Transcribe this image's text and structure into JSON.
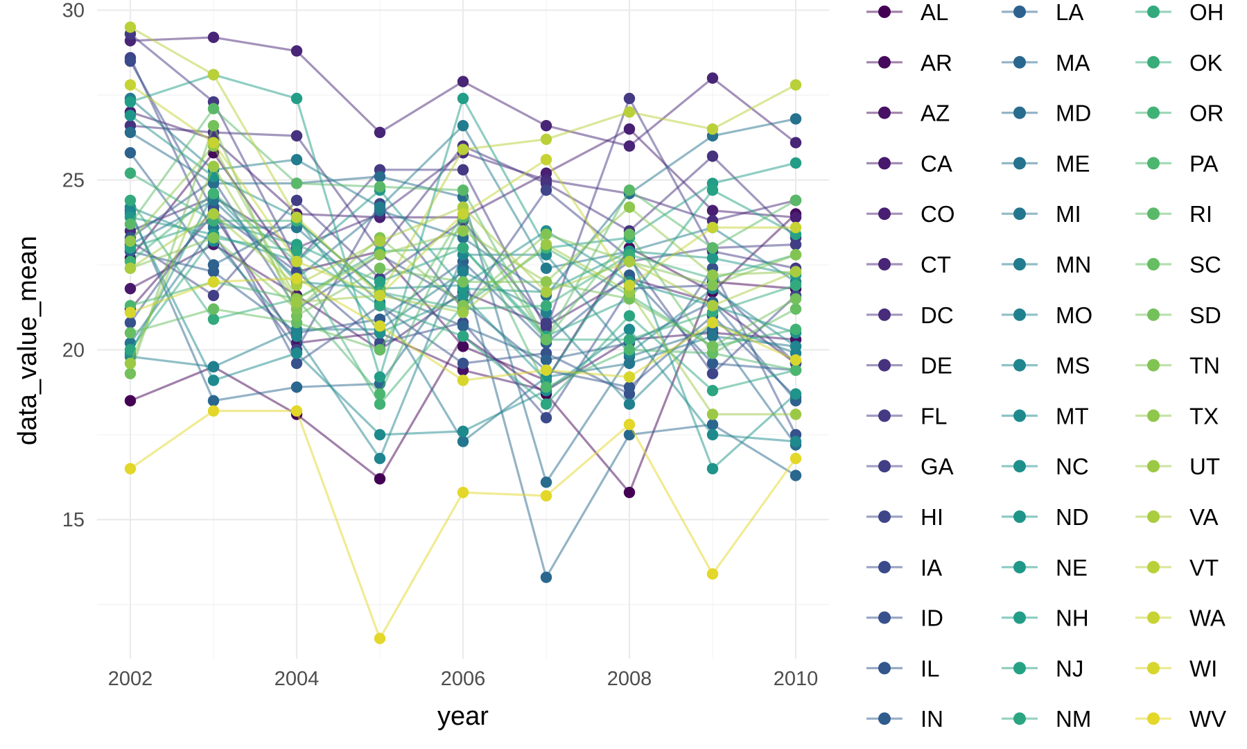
{
  "chart_data": {
    "type": "line",
    "xlabel": "year",
    "ylabel": "data_value_mean",
    "x": [
      2002,
      2003,
      2004,
      2005,
      2006,
      2007,
      2008,
      2009,
      2010
    ],
    "xlim": [
      2001.6,
      2010.4
    ],
    "ylim": [
      10.9,
      30.3
    ],
    "x_ticks": [
      2002,
      2004,
      2006,
      2008,
      2010
    ],
    "y_ticks": [
      15,
      20,
      25,
      30
    ],
    "grid": true,
    "legend_position": "right",
    "legend_columns": 3,
    "palette": "viridis",
    "series": [
      {
        "name": "AL",
        "color": "#440154",
        "values": [
          18.5,
          19.5,
          18.1,
          16.2,
          20.4,
          18.7,
          15.8,
          22.0,
          21.8
        ]
      },
      {
        "name": "AR",
        "color": "#450a5c",
        "values": [
          22.7,
          25.8,
          22.3,
          22.9,
          20.1,
          19.1,
          23.0,
          21.7,
          24.0
        ]
      },
      {
        "name": "AZ",
        "color": "#471164",
        "values": [
          21.2,
          24.0,
          20.2,
          20.5,
          19.4,
          18.8,
          20.3,
          20.5,
          20.3
        ]
      },
      {
        "name": "CA",
        "color": "#47186b",
        "values": [
          21.8,
          23.1,
          21.6,
          20.0,
          21.7,
          20.7,
          22.1,
          21.4,
          19.6
        ]
      },
      {
        "name": "CO",
        "color": "#481f72",
        "values": [
          27.0,
          26.2,
          24.0,
          23.9,
          23.9,
          25.2,
          26.5,
          24.1,
          23.9
        ]
      },
      {
        "name": "CT",
        "color": "#482576",
        "values": [
          29.1,
          29.2,
          28.8,
          26.4,
          27.9,
          26.6,
          26.0,
          28.0,
          26.1
        ]
      },
      {
        "name": "DC",
        "color": "#472c7b",
        "values": [
          23.5,
          24.5,
          23.0,
          24.0,
          25.8,
          25.0,
          24.6,
          23.8,
          24.4
        ]
      },
      {
        "name": "DE",
        "color": "#46327e",
        "values": [
          26.6,
          26.4,
          26.3,
          22.9,
          26.0,
          24.9,
          23.5,
          25.7,
          23.3
        ]
      },
      {
        "name": "FL",
        "color": "#443983",
        "values": [
          29.3,
          27.3,
          22.6,
          25.3,
          25.3,
          20.6,
          27.4,
          22.9,
          22.4
        ]
      },
      {
        "name": "GA",
        "color": "#413e85",
        "values": [
          23.2,
          21.6,
          24.4,
          22.1,
          23.8,
          20.8,
          22.6,
          23.0,
          23.1
        ]
      },
      {
        "name": "HI",
        "color": "#3e4588",
        "values": [
          28.6,
          23.4,
          20.0,
          24.3,
          21.2,
          24.7,
          22.7,
          19.3,
          21.6
        ]
      },
      {
        "name": "IA",
        "color": "#3a4a8b",
        "values": [
          28.5,
          24.1,
          22.3,
          20.2,
          20.8,
          18.0,
          21.8,
          21.9,
          19.6
        ]
      },
      {
        "name": "ID",
        "color": "#37518c",
        "values": [
          20.8,
          24.2,
          19.6,
          21.3,
          19.6,
          19.9,
          18.7,
          22.4,
          17.5
        ]
      },
      {
        "name": "IL",
        "color": "#33568c",
        "values": [
          23.3,
          25.0,
          21.2,
          22.8,
          21.4,
          19.4,
          18.9,
          21.0,
          18.6
        ]
      },
      {
        "name": "IN",
        "color": "#305c8d",
        "values": [
          22.9,
          22.3,
          20.5,
          20.9,
          22.6,
          20.2,
          22.2,
          19.6,
          19.4
        ]
      },
      {
        "name": "LA",
        "color": "#2d628e",
        "values": [
          25.8,
          22.5,
          23.8,
          21.7,
          20.7,
          19.7,
          20.2,
          21.4,
          18.5
        ]
      },
      {
        "name": "MA",
        "color": "#2a678e",
        "values": [
          24.1,
          18.5,
          18.9,
          19.0,
          22.4,
          13.3,
          17.5,
          17.8,
          16.3
        ]
      },
      {
        "name": "MD",
        "color": "#286c8e",
        "values": [
          26.4,
          24.9,
          24.9,
          25.1,
          24.5,
          16.1,
          19.8,
          20.6,
          17.2
        ]
      },
      {
        "name": "ME",
        "color": "#26718e",
        "values": [
          23.1,
          24.4,
          22.1,
          24.1,
          23.3,
          21.6,
          24.6,
          26.3,
          26.8
        ]
      },
      {
        "name": "MI",
        "color": "#24768e",
        "values": [
          20.2,
          23.6,
          23.6,
          21.4,
          17.3,
          19.2,
          19.6,
          20.4,
          20.1
        ]
      },
      {
        "name": "MN",
        "color": "#237b8e",
        "values": [
          27.4,
          25.3,
          25.6,
          24.2,
          26.6,
          22.4,
          22.9,
          23.6,
          22.0
        ]
      },
      {
        "name": "MO",
        "color": "#21808e",
        "values": [
          19.8,
          19.5,
          20.6,
          20.6,
          22.3,
          21.1,
          18.4,
          20.8,
          19.9
        ]
      },
      {
        "name": "MS",
        "color": "#1f858e",
        "values": [
          24.2,
          23.2,
          20.4,
          16.8,
          22.8,
          22.8,
          19.9,
          21.8,
          20.1
        ]
      },
      {
        "name": "MT",
        "color": "#1e8a8d",
        "values": [
          24.0,
          19.1,
          19.9,
          17.5,
          17.6,
          18.8,
          20.6,
          17.5,
          17.3
        ]
      },
      {
        "name": "NC",
        "color": "#1f8f8c",
        "values": [
          19.9,
          24.6,
          22.0,
          21.8,
          21.9,
          23.5,
          22.0,
          21.3,
          20.5
        ]
      },
      {
        "name": "ND",
        "color": "#1f948a",
        "values": [
          26.9,
          25.1,
          23.9,
          20.5,
          21.6,
          19.1,
          22.9,
          16.5,
          18.7
        ]
      },
      {
        "name": "NE",
        "color": "#209889",
        "values": [
          23.9,
          23.4,
          22.6,
          24.7,
          21.8,
          21.7,
          22.9,
          22.7,
          22.2
        ]
      },
      {
        "name": "NH",
        "color": "#229d87",
        "values": [
          27.3,
          28.1,
          27.4,
          19.2,
          27.4,
          23.0,
          23.3,
          24.9,
          25.5
        ]
      },
      {
        "name": "NJ",
        "color": "#25a284",
        "values": [
          23.0,
          23.8,
          23.1,
          22.0,
          23.0,
          20.4,
          21.5,
          24.7,
          23.4
        ]
      },
      {
        "name": "NM",
        "color": "#2ca581",
        "values": [
          20.0,
          23.3,
          22.9,
          21.3,
          20.4,
          18.4,
          21.0,
          18.8,
          19.4
        ]
      },
      {
        "name": "OH",
        "color": "#33aa7d",
        "values": [
          24.4,
          20.9,
          21.5,
          22.9,
          23.0,
          20.3,
          20.3,
          21.1,
          21.9
        ]
      },
      {
        "name": "OK",
        "color": "#39ad79",
        "values": [
          25.2,
          23.8,
          23.8,
          21.7,
          21.2,
          21.3,
          22.8,
          22.1,
          22.8
        ]
      },
      {
        "name": "OR",
        "color": "#40b275",
        "values": [
          22.6,
          24.6,
          22.6,
          18.4,
          21.3,
          23.0,
          21.6,
          20.1,
          20.6
        ]
      },
      {
        "name": "PA",
        "color": "#4db66e",
        "values": [
          21.3,
          22.0,
          21.5,
          18.7,
          23.9,
          18.9,
          20.0,
          19.9,
          19.4
        ]
      },
      {
        "name": "RI",
        "color": "#5ab968",
        "values": [
          23.7,
          27.1,
          24.9,
          24.8,
          24.7,
          20.3,
          24.7,
          23.0,
          24.4
        ]
      },
      {
        "name": "SC",
        "color": "#66bd62",
        "values": [
          20.5,
          21.2,
          20.8,
          20.0,
          24.0,
          20.3,
          23.4,
          19.9,
          21.2
        ]
      },
      {
        "name": "SD",
        "color": "#74c05b",
        "values": [
          19.3,
          26.6,
          21.0,
          22.4,
          22.0,
          22.0,
          21.5,
          20.1,
          21.5
        ]
      },
      {
        "name": "TN",
        "color": "#82c454",
        "values": [
          22.4,
          23.3,
          21.2,
          23.3,
          21.3,
          23.4,
          22.6,
          21.9,
          22.8
        ]
      },
      {
        "name": "TX",
        "color": "#8fc74c",
        "values": [
          23.2,
          26.0,
          21.5,
          22.8,
          23.5,
          22.0,
          24.2,
          22.2,
          22.3
        ]
      },
      {
        "name": "UT",
        "color": "#9cc945",
        "values": [
          19.6,
          25.4,
          21.4,
          21.6,
          21.1,
          23.1,
          21.7,
          18.1,
          18.1
        ]
      },
      {
        "name": "VA",
        "color": "#aacc3f",
        "values": [
          22.4,
          24.0,
          21.9,
          23.2,
          24.2,
          21.7,
          22.6,
          21.3,
          22.3
        ]
      },
      {
        "name": "VT",
        "color": "#bad038",
        "values": [
          29.5,
          28.1,
          23.9,
          21.6,
          25.9,
          26.2,
          27.0,
          26.5,
          27.8
        ]
      },
      {
        "name": "WA",
        "color": "#c6d333",
        "values": [
          27.8,
          26.1,
          22.6,
          21.6,
          24.0,
          25.6,
          21.9,
          23.6,
          23.6
        ]
      },
      {
        "name": "WI",
        "color": "#d7d62d",
        "values": [
          21.1,
          22.0,
          22.1,
          20.7,
          19.1,
          19.4,
          19.2,
          20.8,
          19.7
        ]
      },
      {
        "name": "WV",
        "color": "#e3d729",
        "values": [
          16.5,
          18.2,
          18.2,
          11.5,
          15.8,
          15.7,
          17.8,
          13.4,
          16.8
        ]
      }
    ]
  }
}
